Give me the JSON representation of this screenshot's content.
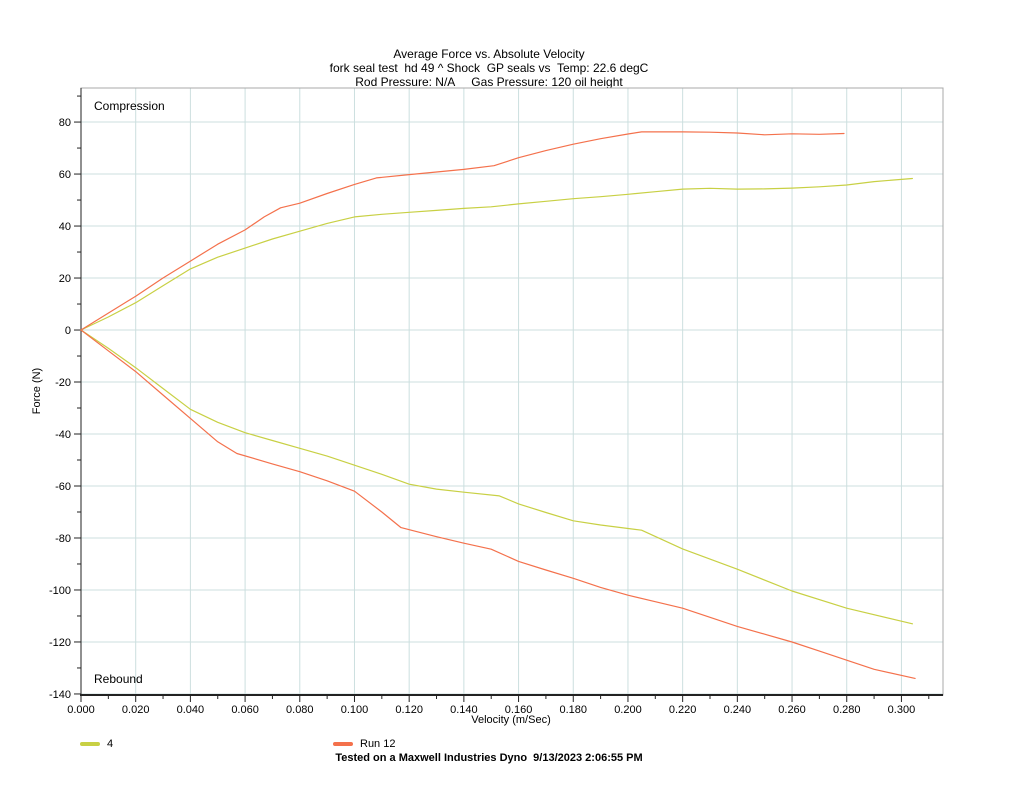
{
  "chart_data": {
    "type": "line",
    "title": "Average Force vs. Absolute Velocity",
    "subtitle": "fork seal test  hd 49 ^ Shock  GP seals vs  Temp: 22.6 degC",
    "subtitle2": "Rod Pressure: N/A     Gas Pressure: 120 oil height",
    "xlabel": "Velocity (m/Sec)",
    "ylabel": "Force (N)",
    "xlim": [
      0,
      0.3152
    ],
    "ylim": [
      -140.4,
      93.1
    ],
    "x_ticks": [
      0.0,
      0.02,
      0.04,
      0.06,
      0.08,
      0.1,
      0.12,
      0.14,
      0.16,
      0.18,
      0.2,
      0.22,
      0.24,
      0.26,
      0.28,
      0.3
    ],
    "x_minor_ticks": [
      0.01,
      0.03,
      0.05,
      0.07,
      0.09,
      0.11,
      0.13,
      0.15,
      0.17,
      0.19,
      0.21,
      0.23,
      0.25,
      0.27,
      0.29,
      0.31
    ],
    "y_ticks": [
      80,
      60,
      40,
      20,
      0,
      -20,
      -40,
      -60,
      -80,
      -100,
      -120,
      -140
    ],
    "y_minor_ticks": [
      90,
      70,
      50,
      30,
      10,
      -10,
      -30,
      -50,
      -70,
      -90,
      -110,
      -130
    ],
    "x_tick_decimals": 3,
    "grid": true,
    "gridline_color": "#ccdfdf",
    "border_color": "#a8a8a8",
    "axis_color": "#222222",
    "annotations": [
      {
        "text": "Compression",
        "position": "top-left"
      },
      {
        "text": "Rebound",
        "position": "bottom-left"
      }
    ],
    "legend": {
      "position": "bottom-left",
      "entries": [
        "4",
        "Run 12"
      ]
    },
    "series": [
      {
        "name": "4",
        "color": "#c8d044",
        "branches": {
          "compression": [
            [
              0,
              0
            ],
            [
              0.01,
              5
            ],
            [
              0.02,
              10.5
            ],
            [
              0.03,
              17
            ],
            [
              0.04,
              23.5
            ],
            [
              0.05,
              28
            ],
            [
              0.06,
              31.5
            ],
            [
              0.07,
              35
            ],
            [
              0.08,
              38
            ],
            [
              0.09,
              41
            ],
            [
              0.1,
              43.5
            ],
            [
              0.11,
              44.5
            ],
            [
              0.12,
              45.3
            ],
            [
              0.13,
              46
            ],
            [
              0.14,
              46.8
            ],
            [
              0.15,
              47.4
            ],
            [
              0.16,
              48.5
            ],
            [
              0.17,
              49.5
            ],
            [
              0.18,
              50.5
            ],
            [
              0.19,
              51.3
            ],
            [
              0.2,
              52.2
            ],
            [
              0.21,
              53.2
            ],
            [
              0.22,
              54.2
            ],
            [
              0.23,
              54.5
            ],
            [
              0.24,
              54.2
            ],
            [
              0.25,
              54.3
            ],
            [
              0.26,
              54.6
            ],
            [
              0.27,
              55.1
            ],
            [
              0.28,
              55.8
            ],
            [
              0.29,
              57.1
            ],
            [
              0.304,
              58.3
            ]
          ],
          "rebound": [
            [
              0,
              0
            ],
            [
              0.01,
              -7
            ],
            [
              0.02,
              -14.5
            ],
            [
              0.03,
              -22.5
            ],
            [
              0.04,
              -30.5
            ],
            [
              0.05,
              -35.5
            ],
            [
              0.06,
              -39.5
            ],
            [
              0.07,
              -42.5
            ],
            [
              0.08,
              -45.5
            ],
            [
              0.09,
              -48.5
            ],
            [
              0.1,
              -52
            ],
            [
              0.11,
              -55.5
            ],
            [
              0.12,
              -59.3
            ],
            [
              0.13,
              -61.2
            ],
            [
              0.14,
              -62.4
            ],
            [
              0.153,
              -63.8
            ],
            [
              0.16,
              -66.9
            ],
            [
              0.17,
              -70.2
            ],
            [
              0.18,
              -73.4
            ],
            [
              0.19,
              -75
            ],
            [
              0.205,
              -77
            ],
            [
              0.22,
              -84.2
            ],
            [
              0.24,
              -92
            ],
            [
              0.26,
              -100.4
            ],
            [
              0.28,
              -107
            ],
            [
              0.3,
              -112
            ],
            [
              0.304,
              -113
            ]
          ]
        }
      },
      {
        "name": "Run 12",
        "color": "#f4714c",
        "branches": {
          "compression": [
            [
              0,
              0
            ],
            [
              0.01,
              6.5
            ],
            [
              0.02,
              13
            ],
            [
              0.03,
              20
            ],
            [
              0.04,
              26.5
            ],
            [
              0.05,
              33
            ],
            [
              0.06,
              38.5
            ],
            [
              0.067,
              43.5
            ],
            [
              0.073,
              47
            ],
            [
              0.08,
              48.8
            ],
            [
              0.09,
              52.5
            ],
            [
              0.1,
              56
            ],
            [
              0.108,
              58.5
            ],
            [
              0.12,
              59.8
            ],
            [
              0.13,
              60.8
            ],
            [
              0.14,
              61.8
            ],
            [
              0.151,
              63.2
            ],
            [
              0.16,
              66.3
            ],
            [
              0.17,
              69
            ],
            [
              0.18,
              71.5
            ],
            [
              0.19,
              73.6
            ],
            [
              0.2,
              75.4
            ],
            [
              0.205,
              76.2
            ],
            [
              0.22,
              76.2
            ],
            [
              0.23,
              76.1
            ],
            [
              0.24,
              75.8
            ],
            [
              0.25,
              75.1
            ],
            [
              0.26,
              75.5
            ],
            [
              0.27,
              75.3
            ],
            [
              0.279,
              75.6
            ]
          ],
          "rebound": [
            [
              0,
              0
            ],
            [
              0.01,
              -8
            ],
            [
              0.02,
              -16
            ],
            [
              0.03,
              -25
            ],
            [
              0.04,
              -34
            ],
            [
              0.05,
              -43
            ],
            [
              0.057,
              -47.5
            ],
            [
              0.07,
              -51.5
            ],
            [
              0.08,
              -54.5
            ],
            [
              0.09,
              -58
            ],
            [
              0.1,
              -62
            ],
            [
              0.11,
              -70
            ],
            [
              0.117,
              -76
            ],
            [
              0.13,
              -79.5
            ],
            [
              0.14,
              -82
            ],
            [
              0.15,
              -84.3
            ],
            [
              0.16,
              -89
            ],
            [
              0.17,
              -92.3
            ],
            [
              0.18,
              -95.5
            ],
            [
              0.19,
              -99
            ],
            [
              0.2,
              -102
            ],
            [
              0.21,
              -104.5
            ],
            [
              0.22,
              -107
            ],
            [
              0.23,
              -110.5
            ],
            [
              0.24,
              -114
            ],
            [
              0.25,
              -117
            ],
            [
              0.26,
              -120
            ],
            [
              0.27,
              -123.5
            ],
            [
              0.28,
              -127
            ],
            [
              0.29,
              -130.5
            ],
            [
              0.305,
              -134
            ]
          ]
        }
      }
    ]
  },
  "footer": {
    "text": "Tested on a Maxwell Industries Dyno  9/13/2023 2:06:55 PM"
  }
}
